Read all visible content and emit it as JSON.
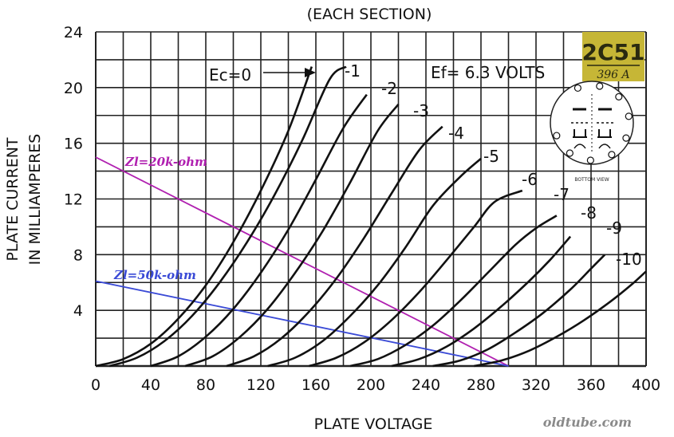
{
  "chart_data": {
    "type": "line",
    "title": "(EACH SECTION)",
    "xlabel": "PLATE VOLTAGE",
    "ylabel_line1": "PLATE CURRENT",
    "ylabel_line2": "IN MILLIAMPERES",
    "xlim": [
      0,
      400
    ],
    "ylim": [
      0,
      24
    ],
    "xticks": [
      0,
      40,
      80,
      120,
      160,
      200,
      240,
      280,
      320,
      360,
      400
    ],
    "xtick_labels": [
      "0",
      "40",
      "80",
      "120",
      "160",
      "200",
      "240",
      "280",
      "320",
      "360",
      "400"
    ],
    "yticks": [
      4,
      8,
      12,
      16,
      20,
      24
    ],
    "ytick_labels": [
      "4",
      "8",
      "12",
      "16",
      "20",
      "24"
    ],
    "grid": true,
    "grid_x_step": 20,
    "grid_y_step": 2,
    "filament": "Ef= 6.3 VOLTS",
    "series": [
      {
        "name": "Ec=0",
        "color": "#111111",
        "points": [
          [
            0,
            0
          ],
          [
            20,
            0.5
          ],
          [
            40,
            1.6
          ],
          [
            60,
            3.4
          ],
          [
            80,
            5.8
          ],
          [
            100,
            8.9
          ],
          [
            120,
            12.6
          ],
          [
            140,
            16.9
          ],
          [
            157,
            21.5
          ]
        ]
      },
      {
        "name": "-1",
        "color": "#111111",
        "points": [
          [
            10,
            0
          ],
          [
            30,
            0.6
          ],
          [
            50,
            1.8
          ],
          [
            70,
            3.6
          ],
          [
            90,
            6
          ],
          [
            110,
            8.9
          ],
          [
            130,
            12.3
          ],
          [
            150,
            16.2
          ],
          [
            170,
            20.6
          ],
          [
            182,
            21.5
          ]
        ]
      },
      {
        "name": "-2",
        "color": "#111111",
        "points": [
          [
            40,
            0
          ],
          [
            60,
            0.7
          ],
          [
            80,
            2.1
          ],
          [
            100,
            4.1
          ],
          [
            120,
            6.7
          ],
          [
            140,
            9.8
          ],
          [
            160,
            13.4
          ],
          [
            180,
            17.1
          ],
          [
            197,
            19.5
          ]
        ]
      },
      {
        "name": "-3",
        "color": "#111111",
        "points": [
          [
            65,
            0
          ],
          [
            85,
            0.7
          ],
          [
            105,
            2.1
          ],
          [
            125,
            4.1
          ],
          [
            145,
            6.7
          ],
          [
            165,
            9.7
          ],
          [
            185,
            13.2
          ],
          [
            205,
            16.9
          ],
          [
            220,
            18.8
          ]
        ]
      },
      {
        "name": "-4",
        "color": "#111111",
        "points": [
          [
            95,
            0
          ],
          [
            115,
            0.7
          ],
          [
            135,
            2
          ],
          [
            155,
            3.9
          ],
          [
            175,
            6.3
          ],
          [
            195,
            9.2
          ],
          [
            215,
            12.4
          ],
          [
            235,
            15.5
          ],
          [
            252,
            17.2
          ]
        ]
      },
      {
        "name": "-5",
        "color": "#111111",
        "points": [
          [
            125,
            0
          ],
          [
            145,
            0.6
          ],
          [
            165,
            1.8
          ],
          [
            185,
            3.6
          ],
          [
            205,
            5.8
          ],
          [
            225,
            8.5
          ],
          [
            245,
            11.5
          ],
          [
            265,
            13.6
          ],
          [
            280,
            14.9
          ]
        ]
      },
      {
        "name": "-6",
        "color": "#111111",
        "points": [
          [
            155,
            0
          ],
          [
            175,
            0.6
          ],
          [
            195,
            1.7
          ],
          [
            215,
            3.3
          ],
          [
            235,
            5.3
          ],
          [
            255,
            7.6
          ],
          [
            275,
            10
          ],
          [
            290,
            11.8
          ],
          [
            310,
            12.6
          ]
        ]
      },
      {
        "name": "-7",
        "color": "#111111",
        "points": [
          [
            185,
            0
          ],
          [
            205,
            0.5
          ],
          [
            225,
            1.5
          ],
          [
            245,
            2.9
          ],
          [
            265,
            4.7
          ],
          [
            285,
            6.7
          ],
          [
            305,
            8.7
          ],
          [
            320,
            9.9
          ],
          [
            335,
            10.8
          ]
        ]
      },
      {
        "name": "-8",
        "color": "#111111",
        "points": [
          [
            215,
            0
          ],
          [
            235,
            0.5
          ],
          [
            255,
            1.4
          ],
          [
            275,
            2.7
          ],
          [
            295,
            4.3
          ],
          [
            315,
            6.1
          ],
          [
            330,
            7.6
          ],
          [
            345,
            9.3
          ]
        ]
      },
      {
        "name": "-9",
        "color": "#111111",
        "points": [
          [
            245,
            0
          ],
          [
            265,
            0.4
          ],
          [
            285,
            1.2
          ],
          [
            305,
            2.4
          ],
          [
            325,
            3.8
          ],
          [
            345,
            5.5
          ],
          [
            360,
            7
          ],
          [
            370,
            8
          ]
        ]
      },
      {
        "name": "-10",
        "color": "#111111",
        "points": [
          [
            275,
            0
          ],
          [
            295,
            0.4
          ],
          [
            315,
            1.1
          ],
          [
            335,
            2.1
          ],
          [
            355,
            3.3
          ],
          [
            375,
            4.7
          ],
          [
            390,
            5.9
          ],
          [
            400,
            6.8
          ]
        ]
      }
    ],
    "load_lines": [
      {
        "label": "Zl=20k-ohm",
        "color": "#b020b0",
        "points": [
          [
            0,
            15
          ],
          [
            300,
            0
          ]
        ]
      },
      {
        "label": "Zl=50k-ohm",
        "color": "#3a4ad6",
        "points": [
          [
            0,
            6.1
          ],
          [
            300,
            0
          ]
        ]
      }
    ]
  },
  "badge": {
    "tube": "2C51",
    "equivalent": "396 A",
    "view": "BOTTOM VIEW"
  },
  "watermark": "oldtube.com"
}
